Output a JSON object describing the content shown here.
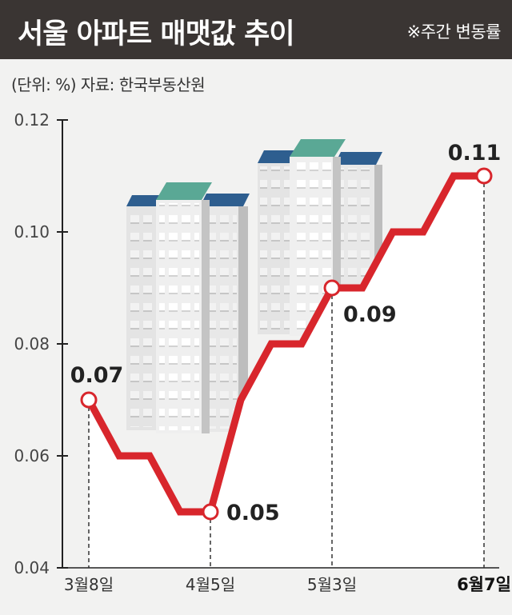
{
  "header": {
    "title": "서울 아파트 매맷값 추이",
    "note": "※주간 변동률"
  },
  "meta": {
    "unit_source": "(단위: %) 자료: 한국부동산원"
  },
  "colors": {
    "header_bg": "#3a3533",
    "line": "#d8262c",
    "background": "#f2f2f1",
    "fill": "#ffffff"
  },
  "chart_data": {
    "type": "line",
    "title": "서울 아파트 매맷값 추이",
    "subtitle": "※주간 변동률",
    "ylabel": "(단위: %)",
    "xlabel": "",
    "source": "자료: 한국부동산원",
    "ylim": [
      0.04,
      0.12
    ],
    "yticks": [
      "0.12",
      "0.10",
      "0.08",
      "0.06",
      "0.04"
    ],
    "grid": false,
    "legend": "none",
    "series": [
      {
        "values": [
          0.07,
          0.06,
          0.06,
          0.05,
          0.05,
          0.07,
          0.08,
          0.08,
          0.09,
          0.09,
          0.1,
          0.1,
          0.11,
          0.11
        ]
      }
    ],
    "x_labels": [
      {
        "index": 0,
        "label": "3월8일",
        "bold": false
      },
      {
        "index": 4,
        "label": "4월5일",
        "bold": false
      },
      {
        "index": 8,
        "label": "5월3일",
        "bold": false
      },
      {
        "index": 13,
        "label": "6월7일",
        "bold": true
      }
    ],
    "highlighted_points": [
      {
        "index": 0,
        "label": "0.07"
      },
      {
        "index": 4,
        "label": "0.05"
      },
      {
        "index": 8,
        "label": "0.09"
      },
      {
        "index": 13,
        "label": "0.11"
      }
    ]
  }
}
